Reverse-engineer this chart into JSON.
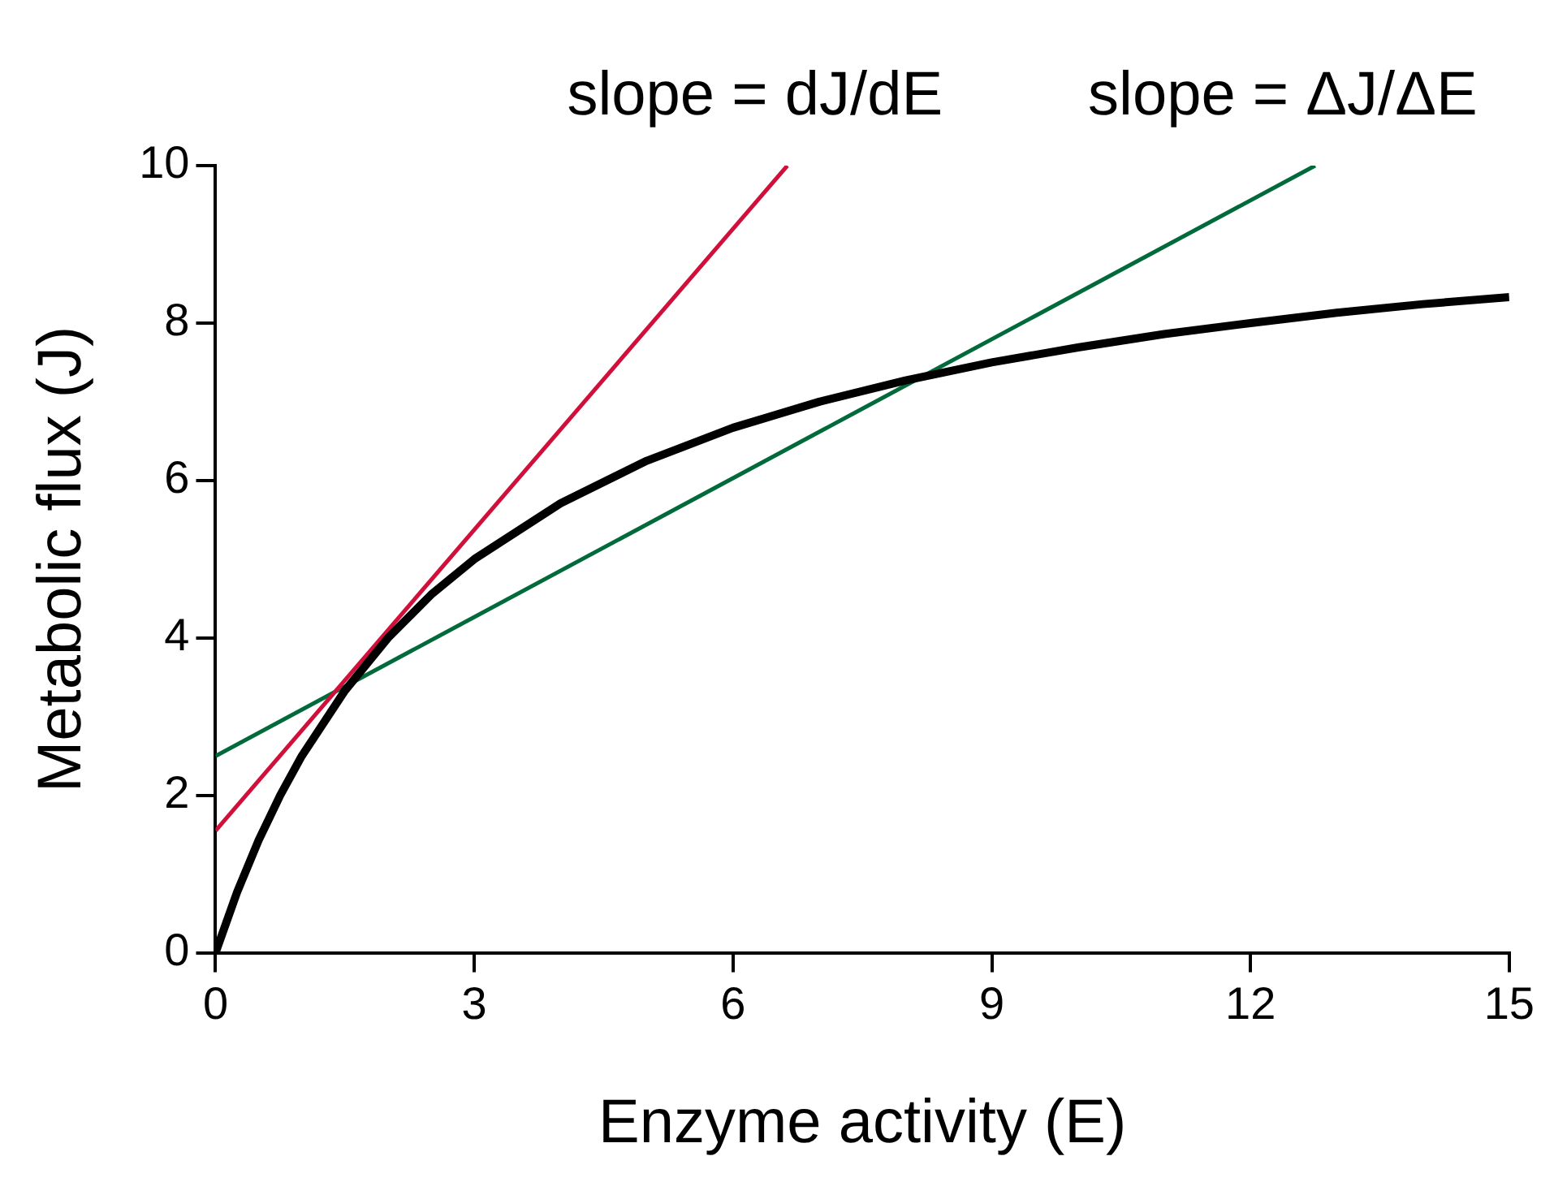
{
  "chart_data": {
    "type": "line",
    "xlabel": "Enzyme activity (E)",
    "ylabel": "Metabolic flux (J)",
    "xlim": [
      0,
      15
    ],
    "xticks": [
      0,
      3,
      6,
      9,
      12,
      15
    ],
    "ylim": [
      0,
      10
    ],
    "yticks": [
      0,
      2,
      4,
      6,
      8,
      10
    ],
    "grid": false,
    "legend": false,
    "marker": "none",
    "line_style": "solid",
    "series": [
      {
        "color": "#000000",
        "x": [
          0,
          0.25,
          0.5,
          0.75,
          1,
          1.5,
          2,
          2.5,
          3,
          4,
          5,
          6,
          7,
          8,
          9,
          10,
          11,
          12,
          13,
          14,
          15
        ],
        "values": [
          0,
          0.77,
          1.43,
          2,
          2.5,
          3.33,
          4,
          4.55,
          5,
          5.71,
          6.25,
          6.67,
          7,
          7.27,
          7.5,
          7.69,
          7.86,
          8,
          8.13,
          8.24,
          8.33
        ]
      },
      {
        "color": "#d0103a",
        "x": [
          0,
          6.63
        ],
        "values": [
          1.55,
          10
        ]
      },
      {
        "color": "#006a3a",
        "x": [
          0,
          12.75
        ],
        "values": [
          2.5,
          10
        ]
      }
    ],
    "annotations": [
      {
        "text": "slope = dJ/dE",
        "x": 6.63,
        "y": 10
      },
      {
        "text": "slope = ΔJ/ΔE",
        "x": 12.75,
        "y": 10
      }
    ]
  }
}
